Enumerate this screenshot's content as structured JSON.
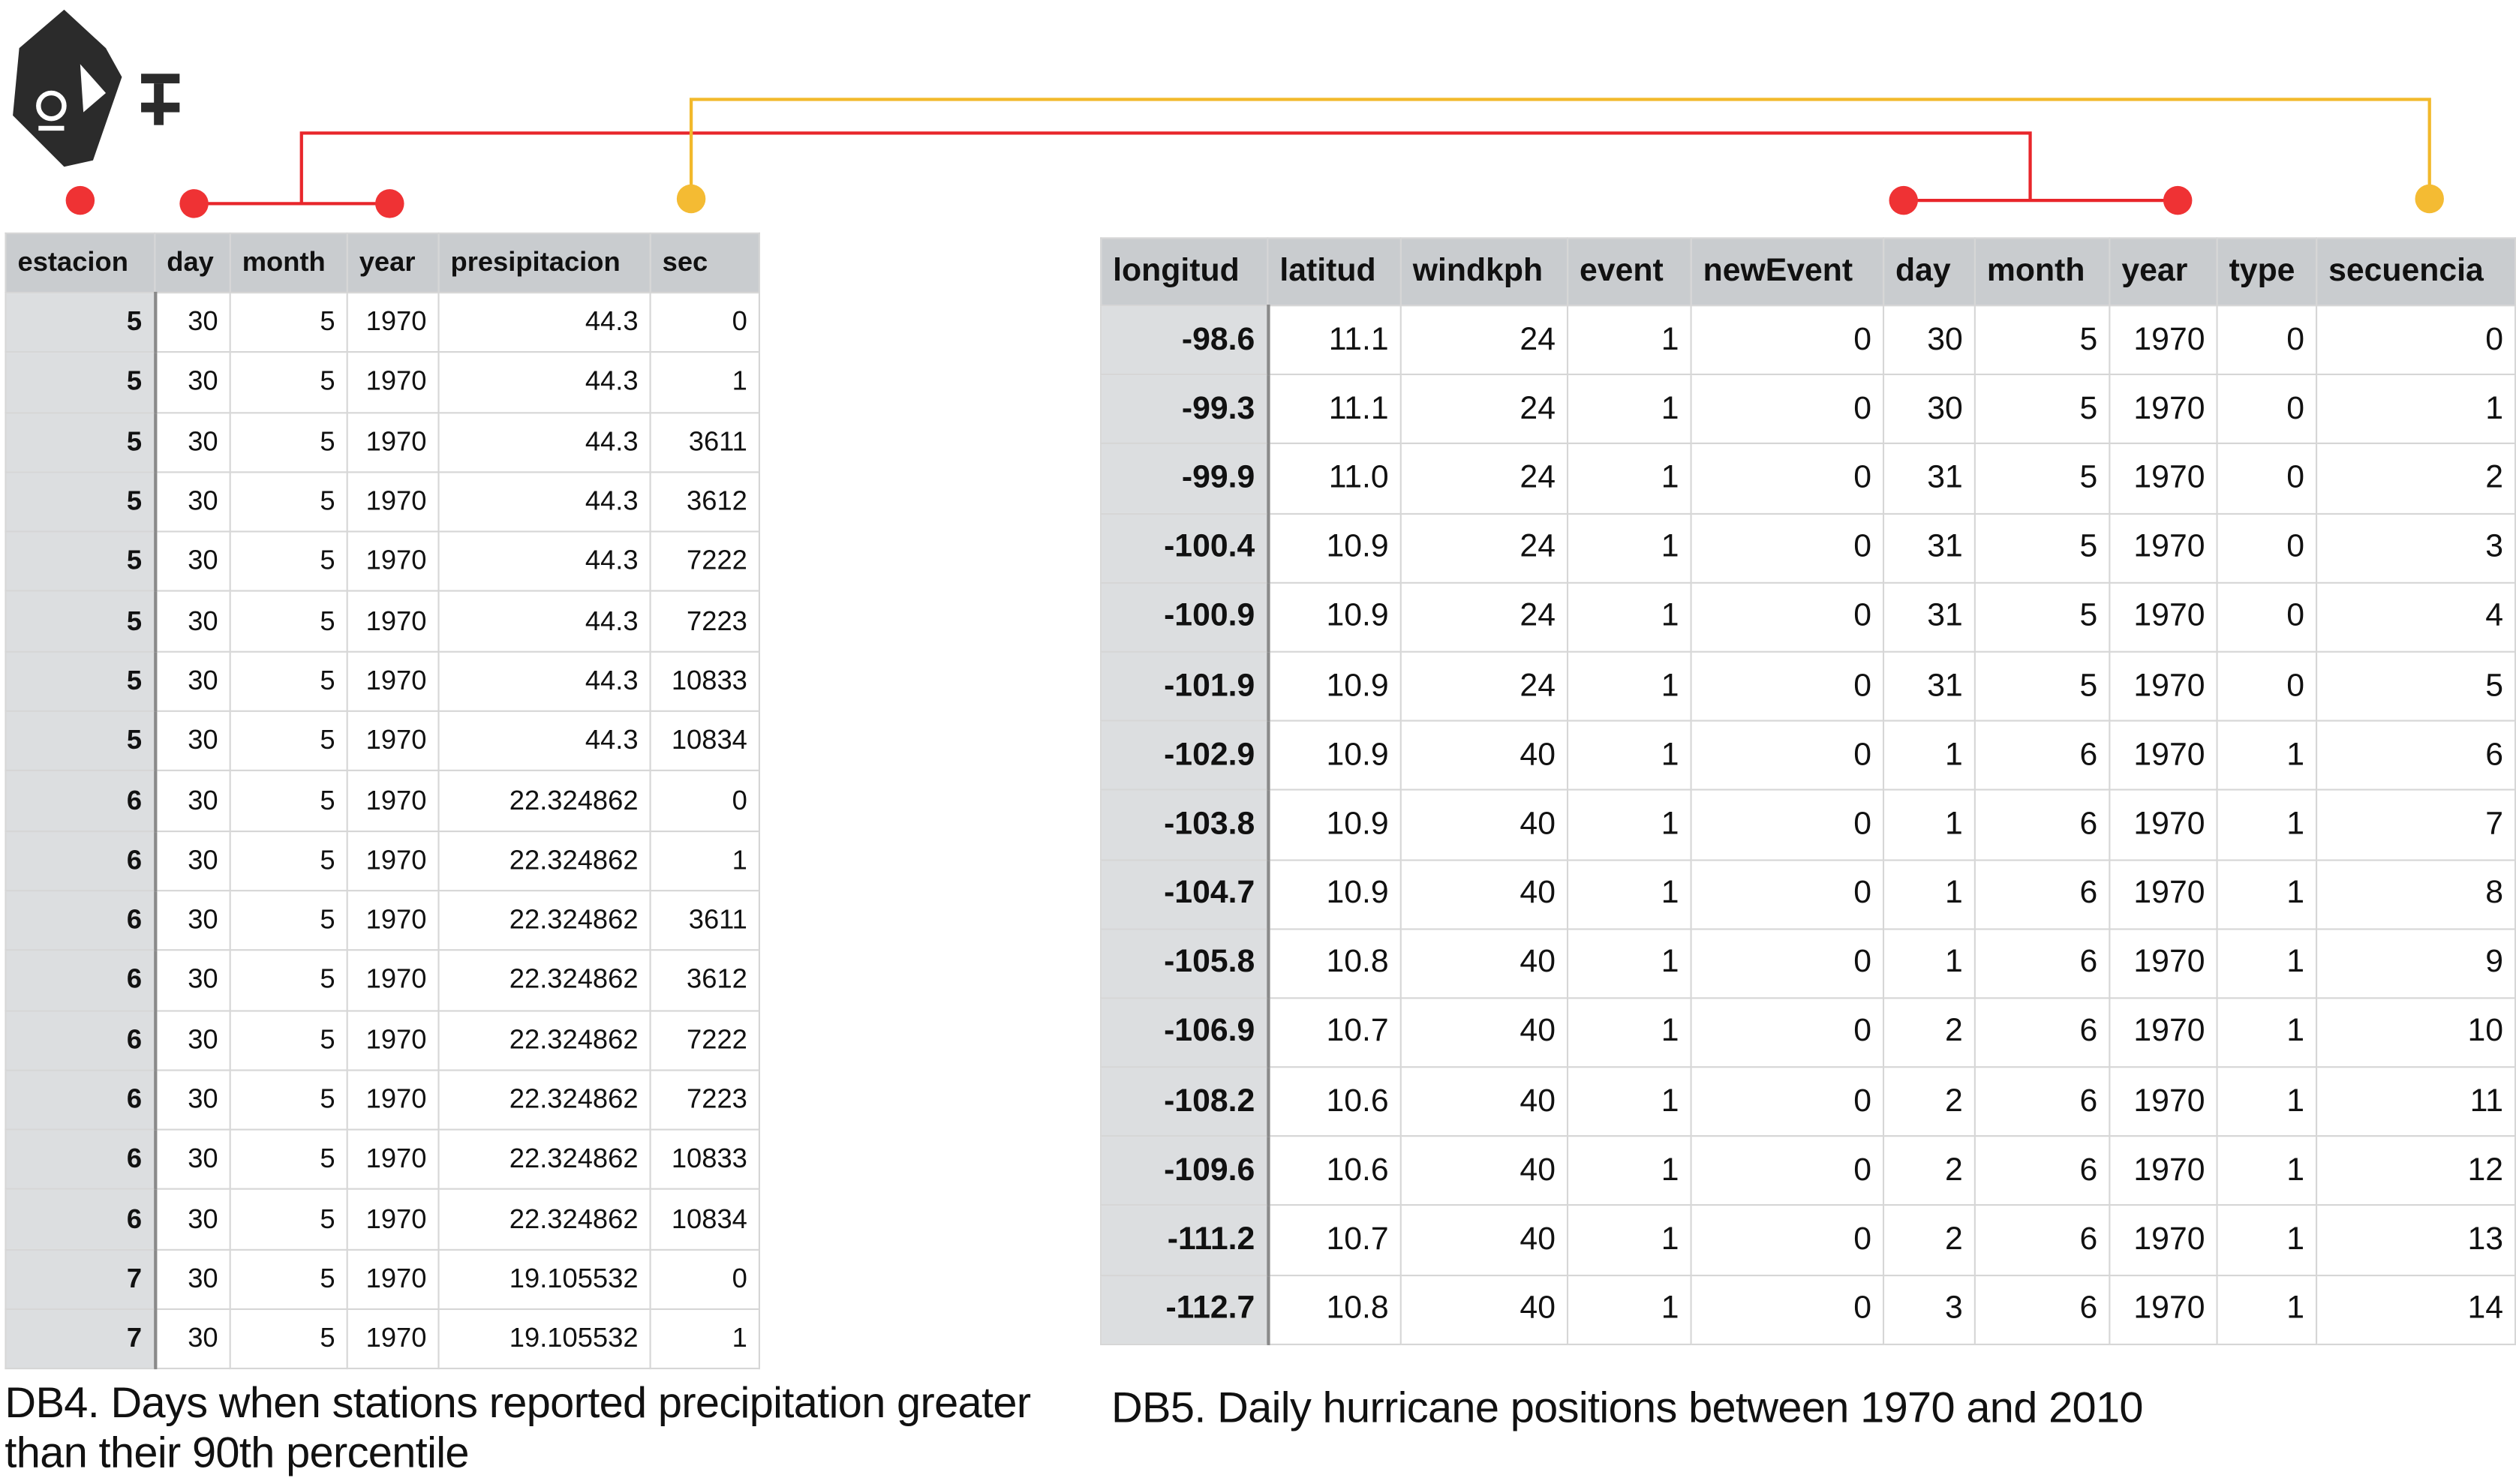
{
  "left_table": {
    "columns": [
      "estacion",
      "day",
      "month",
      "year",
      "presipitacion",
      "sec"
    ],
    "rows": [
      [
        "5",
        "30",
        "5",
        "1970",
        "44.3",
        "0"
      ],
      [
        "5",
        "30",
        "5",
        "1970",
        "44.3",
        "1"
      ],
      [
        "5",
        "30",
        "5",
        "1970",
        "44.3",
        "3611"
      ],
      [
        "5",
        "30",
        "5",
        "1970",
        "44.3",
        "3612"
      ],
      [
        "5",
        "30",
        "5",
        "1970",
        "44.3",
        "7222"
      ],
      [
        "5",
        "30",
        "5",
        "1970",
        "44.3",
        "7223"
      ],
      [
        "5",
        "30",
        "5",
        "1970",
        "44.3",
        "10833"
      ],
      [
        "5",
        "30",
        "5",
        "1970",
        "44.3",
        "10834"
      ],
      [
        "6",
        "30",
        "5",
        "1970",
        "22.324862",
        "0"
      ],
      [
        "6",
        "30",
        "5",
        "1970",
        "22.324862",
        "1"
      ],
      [
        "6",
        "30",
        "5",
        "1970",
        "22.324862",
        "3611"
      ],
      [
        "6",
        "30",
        "5",
        "1970",
        "22.324862",
        "3612"
      ],
      [
        "6",
        "30",
        "5",
        "1970",
        "22.324862",
        "7222"
      ],
      [
        "6",
        "30",
        "5",
        "1970",
        "22.324862",
        "7223"
      ],
      [
        "6",
        "30",
        "5",
        "1970",
        "22.324862",
        "10833"
      ],
      [
        "6",
        "30",
        "5",
        "1970",
        "22.324862",
        "10834"
      ],
      [
        "7",
        "30",
        "5",
        "1970",
        "19.105532",
        "0"
      ],
      [
        "7",
        "30",
        "5",
        "1970",
        "19.105532",
        "1"
      ]
    ]
  },
  "right_table": {
    "columns": [
      "longitud",
      "latitud",
      "windkph",
      "event",
      "newEvent",
      "day",
      "month",
      "year",
      "type",
      "secuencia"
    ],
    "rows": [
      [
        "-98.6",
        "11.1",
        "24",
        "1",
        "0",
        "30",
        "5",
        "1970",
        "0",
        "0"
      ],
      [
        "-99.3",
        "11.1",
        "24",
        "1",
        "0",
        "30",
        "5",
        "1970",
        "0",
        "1"
      ],
      [
        "-99.9",
        "11.0",
        "24",
        "1",
        "0",
        "31",
        "5",
        "1970",
        "0",
        "2"
      ],
      [
        "-100.4",
        "10.9",
        "24",
        "1",
        "0",
        "31",
        "5",
        "1970",
        "0",
        "3"
      ],
      [
        "-100.9",
        "10.9",
        "24",
        "1",
        "0",
        "31",
        "5",
        "1970",
        "0",
        "4"
      ],
      [
        "-101.9",
        "10.9",
        "24",
        "1",
        "0",
        "31",
        "5",
        "1970",
        "0",
        "5"
      ],
      [
        "-102.9",
        "10.9",
        "40",
        "1",
        "0",
        "1",
        "6",
        "1970",
        "1",
        "6"
      ],
      [
        "-103.8",
        "10.9",
        "40",
        "1",
        "0",
        "1",
        "6",
        "1970",
        "1",
        "7"
      ],
      [
        "-104.7",
        "10.9",
        "40",
        "1",
        "0",
        "1",
        "6",
        "1970",
        "1",
        "8"
      ],
      [
        "-105.8",
        "10.8",
        "40",
        "1",
        "0",
        "1",
        "6",
        "1970",
        "1",
        "9"
      ],
      [
        "-106.9",
        "10.7",
        "40",
        "1",
        "0",
        "2",
        "6",
        "1970",
        "1",
        "10"
      ],
      [
        "-108.2",
        "10.6",
        "40",
        "1",
        "0",
        "2",
        "6",
        "1970",
        "1",
        "11"
      ],
      [
        "-109.6",
        "10.6",
        "40",
        "1",
        "0",
        "2",
        "6",
        "1970",
        "1",
        "12"
      ],
      [
        "-111.2",
        "10.7",
        "40",
        "1",
        "0",
        "2",
        "6",
        "1970",
        "1",
        "13"
      ],
      [
        "-112.7",
        "10.8",
        "40",
        "1",
        "0",
        "3",
        "6",
        "1970",
        "1",
        "14"
      ]
    ]
  },
  "captions": {
    "db4": "DB4. Days when stations reported precipitation greater than their 90th percentile",
    "db5": "DB5. Daily hurricane positions between 1970 and 2010"
  }
}
